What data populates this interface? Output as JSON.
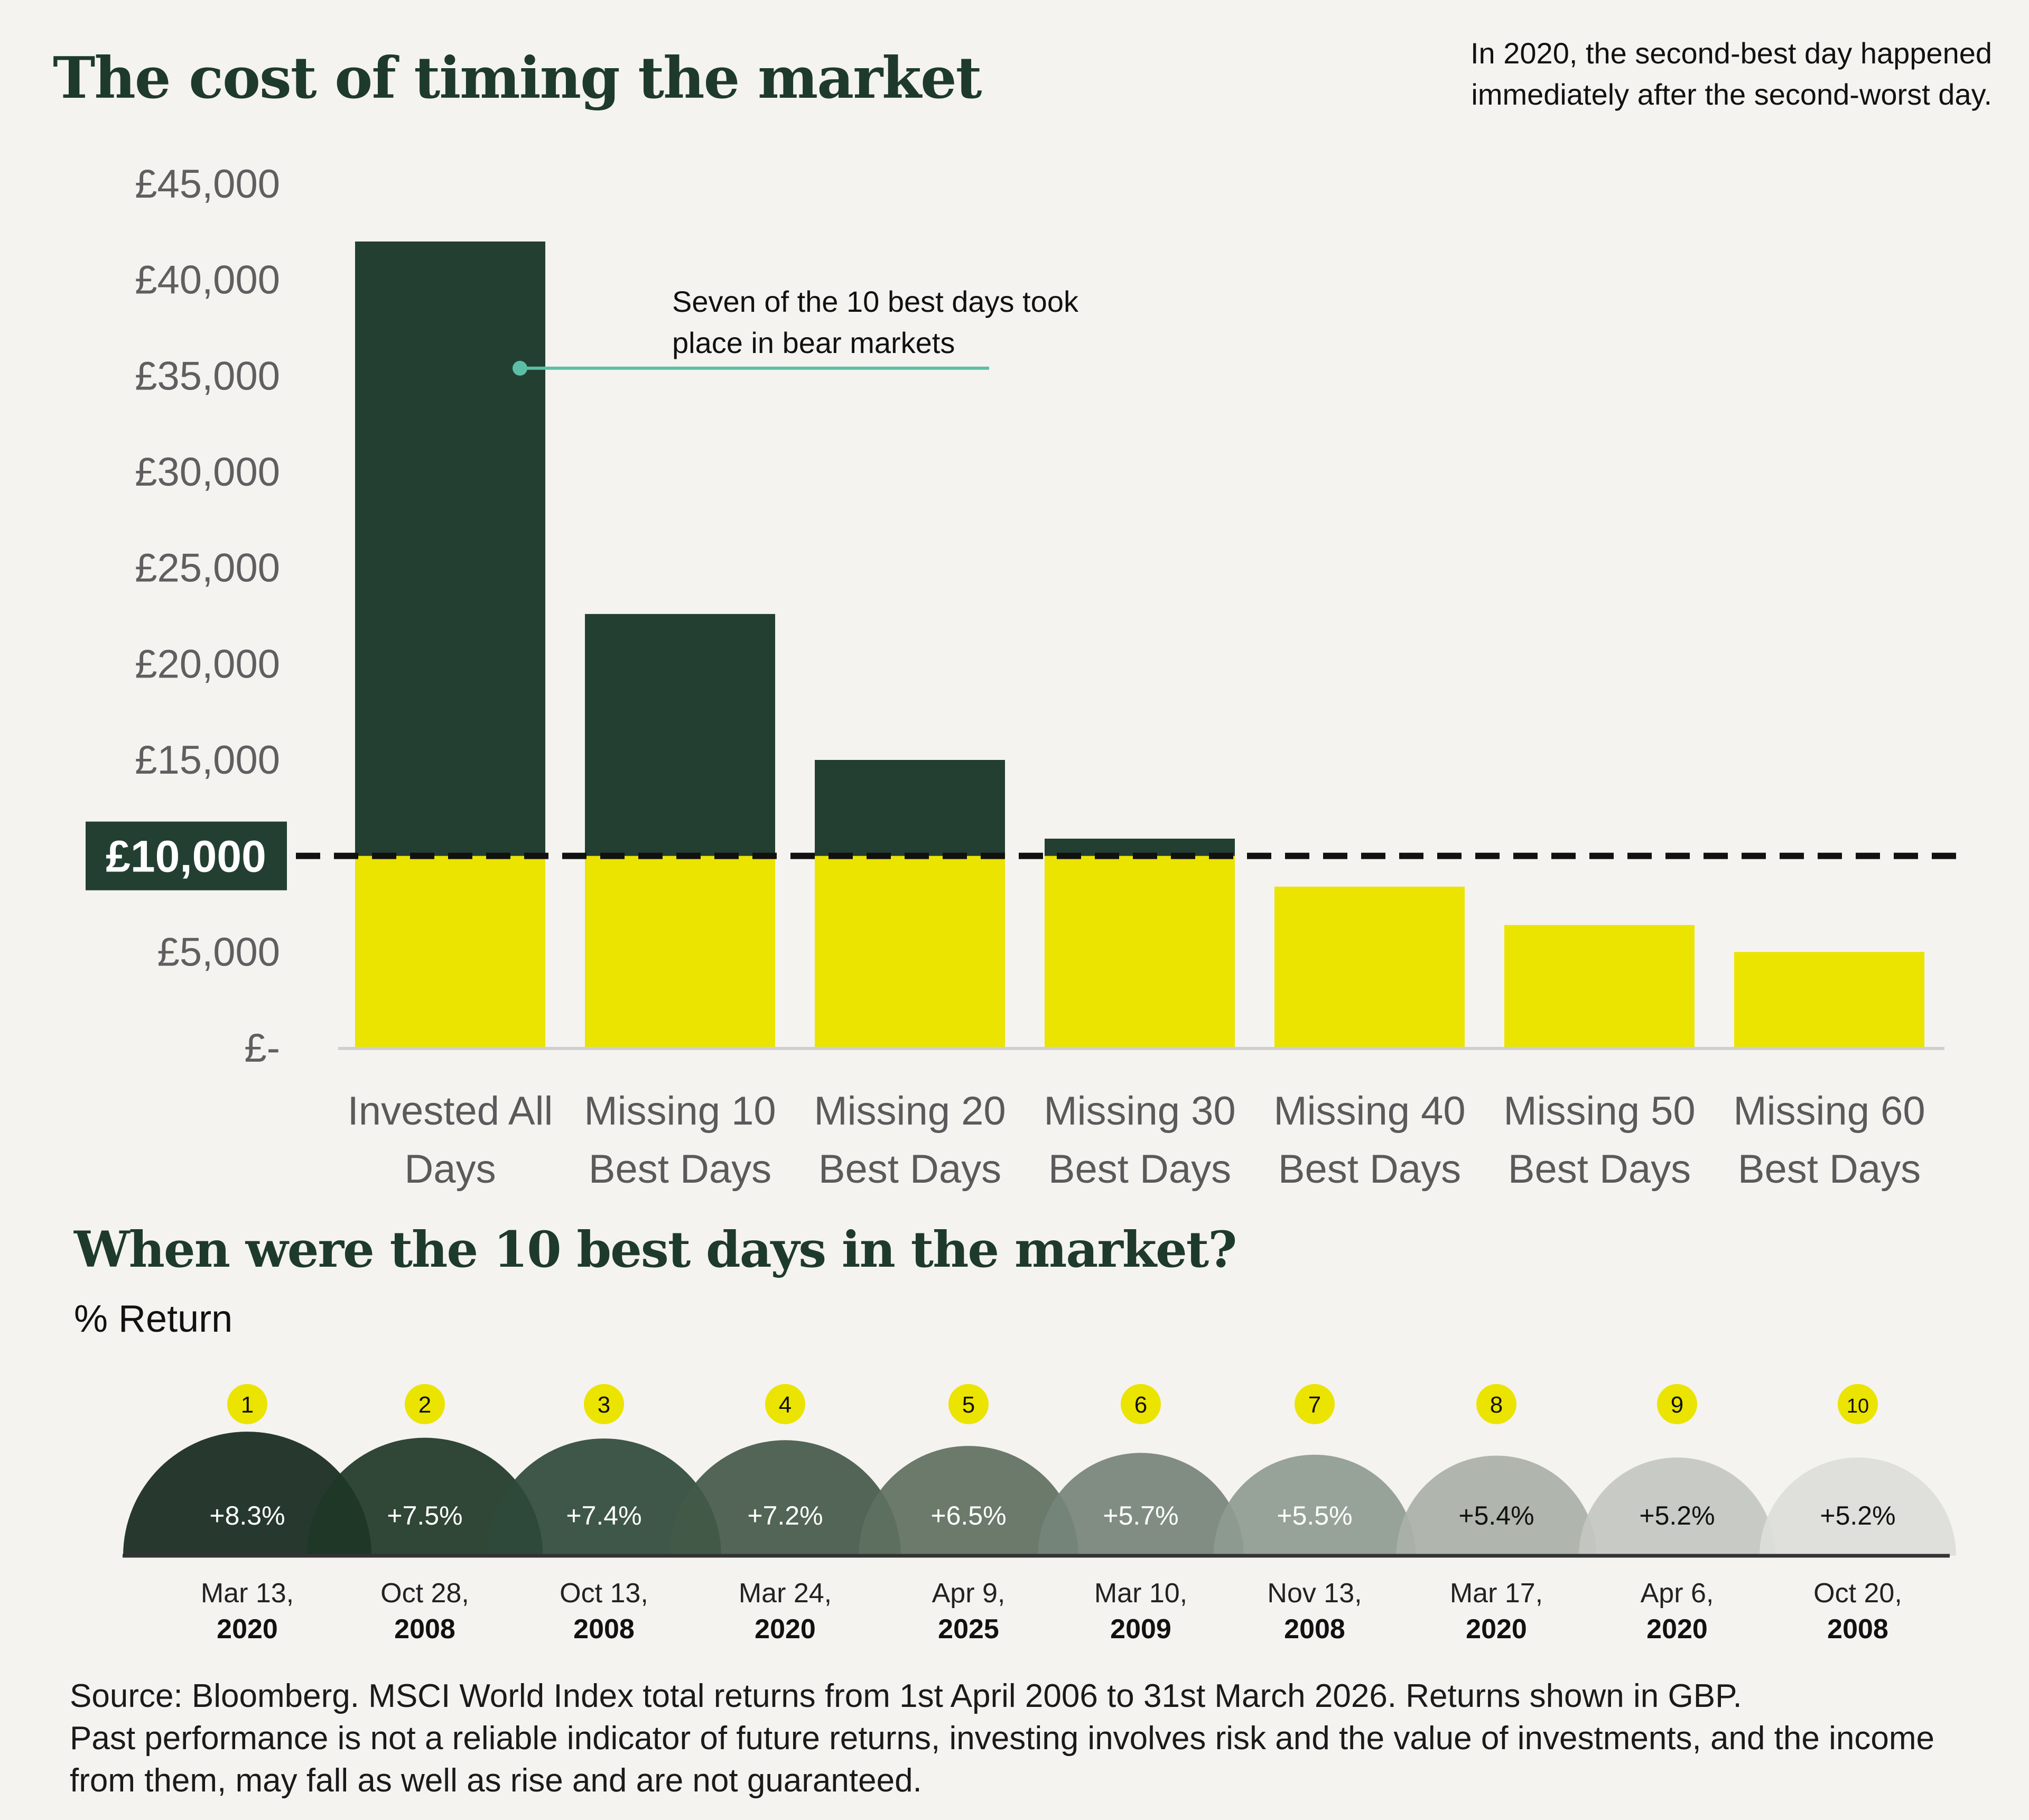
{
  "header": {
    "title": "The cost of timing the market",
    "note": "In 2020, the second-best day happened immediately after the second-worst day."
  },
  "colors": {
    "dark_green": "#233f32",
    "yellow": "#ebe300",
    "teal": "#5bbfa6",
    "background": "#f4f3f0"
  },
  "chart_data": [
    {
      "type": "bar",
      "title": "The cost of timing the market",
      "categories": [
        [
          "Invested All",
          "Days"
        ],
        [
          "Missing 10",
          "Best Days"
        ],
        [
          "Missing 20",
          "Best Days"
        ],
        [
          "Missing 30",
          "Best Days"
        ],
        [
          "Missing 40",
          "Best Days"
        ],
        [
          "Missing 50",
          "Best Days"
        ],
        [
          "Missing 60",
          "Best Days"
        ]
      ],
      "values": [
        42000,
        22600,
        15000,
        10900,
        8400,
        6400,
        5000
      ],
      "ylim": [
        0,
        45000
      ],
      "yticks": [
        0,
        5000,
        10000,
        15000,
        20000,
        25000,
        30000,
        35000,
        40000,
        45000
      ],
      "ytick_labels": [
        "£-",
        "£5,000",
        "£10,000",
        "£15,000",
        "£20,000",
        "£25,000",
        "£30,000",
        "£35,000",
        "£40,000",
        "£45,000"
      ],
      "reference_line": {
        "value": 10000,
        "label": "£10,000",
        "style": "dashed"
      },
      "annotation": {
        "text": [
          "Seven of the 10 best days took",
          "place in bear markets"
        ],
        "bar_index": 0,
        "value": 35400
      },
      "grid": false
    },
    {
      "type": "bubble",
      "title": "When were the 10 best days in the market?",
      "ylabel": "% Return",
      "ranks": [
        "1",
        "2",
        "3",
        "4",
        "5",
        "6",
        "7",
        "8",
        "9",
        "10"
      ],
      "values": [
        8.3,
        7.5,
        7.4,
        7.2,
        6.5,
        5.7,
        5.5,
        5.4,
        5.2,
        5.2
      ],
      "labels": [
        "+8.3%",
        "+7.5%",
        "+7.4%",
        "+7.2%",
        "+6.5%",
        "+5.7%",
        "+5.5%",
        "+5.4%",
        "+5.2%",
        "+5.2%"
      ],
      "dates": [
        [
          "Mar 13,",
          "2020"
        ],
        [
          "Oct 28,",
          "2008"
        ],
        [
          "Oct 13,",
          "2008"
        ],
        [
          "Mar 24,",
          "2020"
        ],
        [
          "Apr 9,",
          "2025"
        ],
        [
          "Mar 10,",
          "2009"
        ],
        [
          "Nov 13,",
          "2008"
        ],
        [
          "Mar 17,",
          "2020"
        ],
        [
          "Apr 6,",
          "2020"
        ],
        [
          "Oct 20,",
          "2008"
        ]
      ],
      "colors": [
        "#15291d",
        "#1e3726",
        "#2f4a3b",
        "#435949",
        "#5e7060",
        "#76847a",
        "#8e9b90",
        "#a9b1a8",
        "#c3c7c1",
        "#dcdeda"
      ],
      "label_colors": [
        "#ffffff",
        "#ffffff",
        "#ffffff",
        "#ffffff",
        "#ffffff",
        "#ffffff",
        "#ffffff",
        "#111111",
        "#111111",
        "#111111"
      ]
    }
  ],
  "section2": {
    "title": "When were the 10 best days in the market?",
    "unit": "% Return"
  },
  "source": {
    "line1": "Source: Bloomberg. MSCI World Index total returns from 1st April 2006 to 31st March 2026. Returns shown in GBP.",
    "line2": "Past performance is not a reliable indicator of future returns, investing involves risk and the value of investments, and the income from them, may fall as well as rise and are not guaranteed."
  }
}
